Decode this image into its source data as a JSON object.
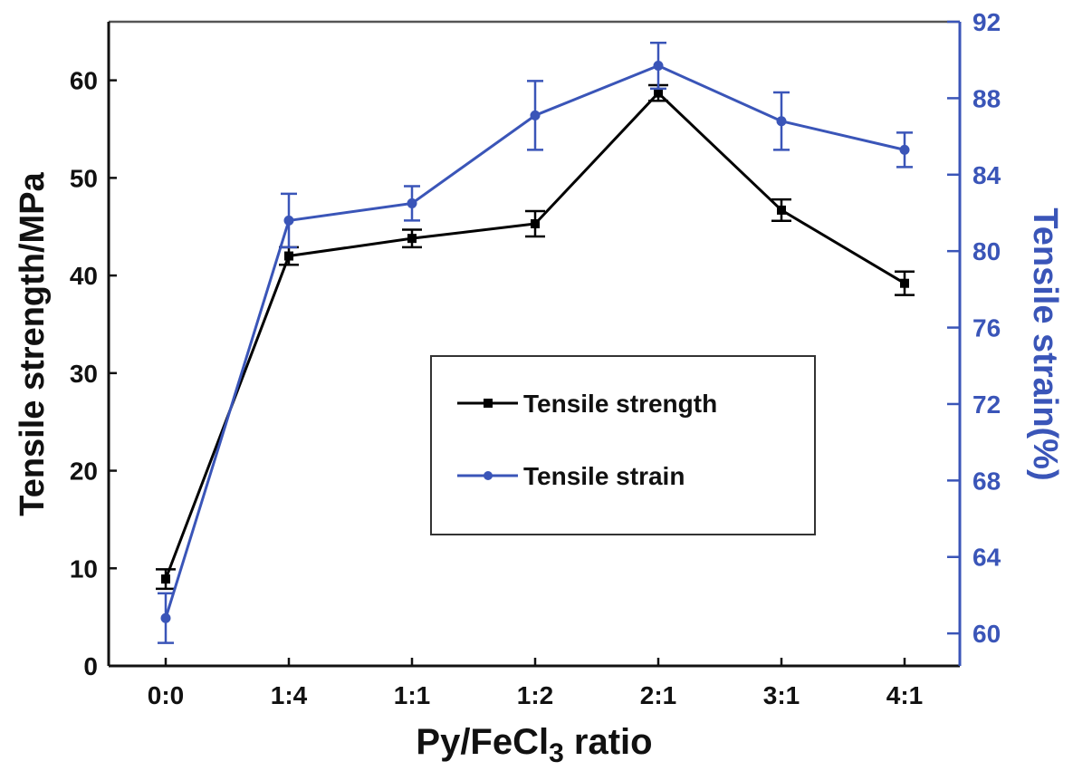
{
  "chart_data": {
    "type": "line",
    "title": "",
    "xlabel": "Py/FeCl3 ratio",
    "xlabel_subscript": "3",
    "categories": [
      "0:0",
      "1:4",
      "1:1",
      "1:2",
      "2:1",
      "3:1",
      "4:1"
    ],
    "y_left": {
      "label": "Tensile strength/MPa",
      "ylim": [
        0,
        66
      ],
      "ticks": [
        0,
        10,
        20,
        30,
        40,
        50,
        60
      ],
      "color": "#000000"
    },
    "y_right": {
      "label": "Tensile strain(%)",
      "ylim": [
        58.3,
        92
      ],
      "ticks": [
        60,
        64,
        68,
        72,
        76,
        80,
        84,
        88,
        92
      ],
      "color": "#3a55b8"
    },
    "series": [
      {
        "name": "Tensile strength",
        "axis": "left",
        "marker": "square",
        "color": "#000000",
        "values": [
          8.9,
          42.0,
          43.8,
          45.3,
          58.7,
          46.7,
          39.2
        ],
        "errors": [
          1.0,
          0.9,
          0.9,
          1.3,
          0.8,
          1.1,
          1.2
        ]
      },
      {
        "name": "Tensile strain",
        "axis": "right",
        "marker": "circle",
        "color": "#3a55b8",
        "values": [
          60.8,
          81.6,
          82.5,
          87.1,
          89.7,
          86.8,
          85.3
        ],
        "errors": [
          1.3,
          1.4,
          0.9,
          1.8,
          1.2,
          1.5,
          0.9
        ]
      }
    ],
    "grid": false,
    "legend_position": "center-right"
  }
}
